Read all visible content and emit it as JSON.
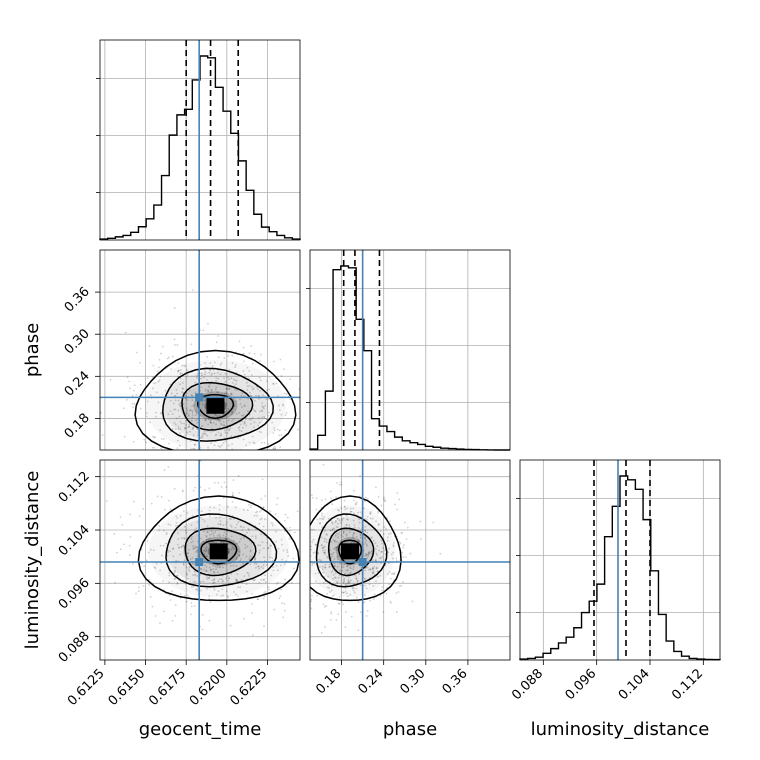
{
  "chart_data": {
    "type": "corner",
    "parameters": [
      "geocent_time",
      "phase",
      "luminosity_distance"
    ],
    "axis_labels": {
      "geocent_time": "geocent_time",
      "phase": "phase",
      "luminosity_distance": "luminosity_distance"
    },
    "ranges": {
      "geocent_time": [
        0.6122,
        0.6245
      ],
      "phase": [
        0.135,
        0.42
      ],
      "luminosity_distance": [
        0.0845,
        0.1145
      ]
    },
    "ticks": {
      "geocent_time": [
        "0.6125",
        "0.6150",
        "0.6175",
        "0.6200",
        "0.6225"
      ],
      "phase": [
        "0.18",
        "0.24",
        "0.30",
        "0.36"
      ],
      "luminosity_distance": [
        "0.088",
        "0.096",
        "0.104",
        "0.112"
      ]
    },
    "truths": {
      "geocent_time": 0.6183,
      "phase": 0.21,
      "luminosity_distance": 0.0992
    },
    "quantiles": {
      "geocent_time": [
        0.6175,
        0.619,
        0.6207
      ],
      "phase": [
        0.183,
        0.199,
        0.234
      ],
      "luminosity_distance": [
        0.0956,
        0.1004,
        0.104
      ]
    },
    "marginals": {
      "geocent_time": {
        "bin_edges": [
          0.6122,
          0.6245
        ],
        "counts": [
          0.5,
          0.9,
          1.7,
          2.5,
          4.2,
          7.2,
          11.5,
          19.0,
          35.0,
          57.0,
          68.0,
          71.0,
          87.0,
          100.0,
          99.0,
          83.0,
          70.0,
          58.0,
          43.0,
          27.0,
          14.0,
          7.0,
          4.5,
          2.5,
          1.2,
          0.5
        ]
      },
      "phase": {
        "bin_edges": [
          0.135,
          0.42
        ],
        "counts": [
          0.5,
          8.0,
          32.0,
          98.0,
          100.0,
          99.0,
          71.0,
          54.0,
          17.0,
          13.0,
          10.0,
          7.0,
          5.0,
          4.0,
          3.0,
          2.0,
          1.5,
          1.0,
          0.8,
          0.5,
          0.3,
          0.2,
          0.1,
          0.05,
          0.0,
          0.0
        ]
      },
      "luminosity_distance": {
        "bin_edges": [
          0.0845,
          0.1145
        ],
        "counts": [
          0.5,
          0.8,
          1.5,
          3.5,
          6.0,
          9.0,
          12.0,
          17.0,
          25.0,
          31.0,
          40.0,
          65.0,
          81.0,
          97.0,
          95.0,
          90.0,
          74.0,
          47.0,
          24.0,
          10.0,
          4.5,
          2.0,
          0.8,
          0.5,
          0.3,
          0.2
        ]
      }
    },
    "joint_centers": {
      "geocent_time_vs_phase": [
        0.6193,
        0.198
      ],
      "geocent_time_vs_luminosity_distance": [
        0.6195,
        0.1008
      ],
      "phase_vs_luminosity_distance": [
        0.192,
        0.1008
      ]
    },
    "colors": {
      "truth": "#4682b4",
      "histogram": "#000000",
      "grid": "#b0b0b0"
    },
    "grid": true
  }
}
